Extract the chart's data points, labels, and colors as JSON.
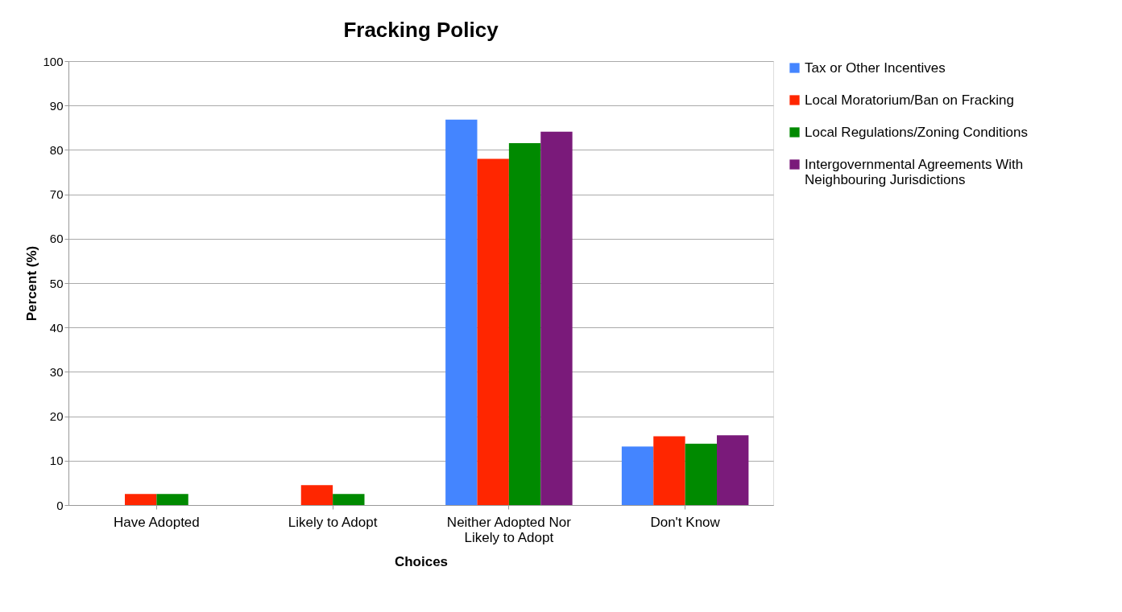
{
  "chart_data": {
    "type": "bar",
    "title": "Fracking Policy",
    "xlabel": "Choices",
    "ylabel": "Percent (%)",
    "categories": [
      "Have Adopted",
      "Likely to Adopt",
      "Neither Adopted Nor Likely to Adopt",
      "Don't Know"
    ],
    "series": [
      {
        "name": "Tax or Other Incentives",
        "color": "#4485ff",
        "values": [
          0,
          0,
          86.8,
          13.2
        ]
      },
      {
        "name": "Local Moratorium/Ban on Fracking",
        "color": "#ff2600",
        "values": [
          2.5,
          4.5,
          78,
          15.5
        ]
      },
      {
        "name": "Local Regulations/Zoning Conditions",
        "color": "#008a00",
        "values": [
          2.5,
          2.5,
          81.5,
          13.8
        ]
      },
      {
        "name": "Intergovernmental Agreements With Neighbouring Jurisdictions",
        "color": "#7a1a7a",
        "values": [
          0,
          0,
          84.1,
          15.7
        ]
      }
    ],
    "ylim": [
      0,
      100
    ],
    "yticks": [
      0,
      10,
      20,
      30,
      40,
      50,
      60,
      70,
      80,
      90,
      100
    ],
    "grid": "y",
    "legend": "right"
  }
}
